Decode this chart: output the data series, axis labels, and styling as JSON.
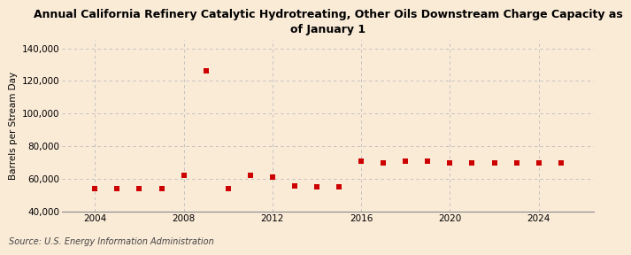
{
  "title": "Annual California Refinery Catalytic Hydrotreating, Other Oils Downstream Charge Capacity as\nof January 1",
  "ylabel": "Barrels per Stream Day",
  "source": "Source: U.S. Energy Information Administration",
  "background_color": "#faebd7",
  "plot_background_color": "#faebd7",
  "marker_color": "#cc0000",
  "grid_color": "#bbbbbb",
  "years": [
    2004,
    2005,
    2006,
    2007,
    2008,
    2009,
    2010,
    2011,
    2012,
    2013,
    2014,
    2015,
    2016,
    2017,
    2018,
    2019,
    2020,
    2021,
    2022,
    2023,
    2024,
    2025
  ],
  "values": [
    54000,
    54000,
    54000,
    54000,
    62000,
    126000,
    54000,
    62000,
    61000,
    56000,
    55000,
    55000,
    71000,
    70000,
    71000,
    71000,
    70000,
    70000,
    70000,
    70000,
    70000,
    70000
  ],
  "ylim": [
    40000,
    145000
  ],
  "yticks": [
    40000,
    60000,
    80000,
    100000,
    120000,
    140000
  ],
  "xticks": [
    2004,
    2008,
    2012,
    2016,
    2020,
    2024
  ],
  "xlim": [
    2002.5,
    2026.5
  ],
  "title_fontsize": 9,
  "axis_fontsize": 7.5,
  "tick_fontsize": 7.5,
  "source_fontsize": 7
}
